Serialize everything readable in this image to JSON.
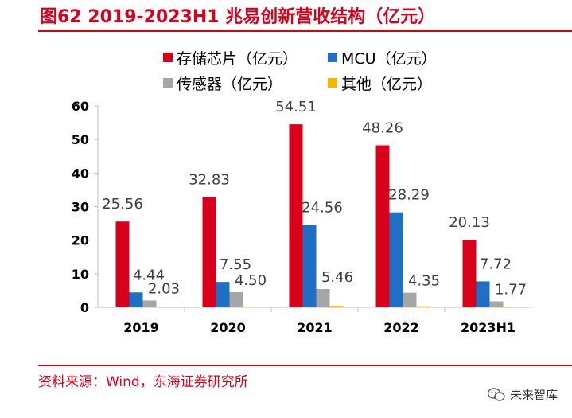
{
  "title": "图62  2019-2023H1 兆易创新营收结构（亿元）",
  "source": "资料来源：Wind，东海证券研究所",
  "watermark": "未来智库",
  "chart_data": {
    "type": "bar",
    "categories": [
      "2019",
      "2020",
      "2021",
      "2022",
      "2023H1"
    ],
    "series": [
      {
        "name": "存储芯片（亿元）",
        "color": "#d9001b",
        "values": [
          25.56,
          32.83,
          54.51,
          48.26,
          20.13
        ],
        "labels": [
          "25.56",
          "32.83",
          "54.51",
          "48.26",
          "20.13"
        ]
      },
      {
        "name": "MCU（亿元）",
        "color": "#1f6fc5",
        "values": [
          4.44,
          7.55,
          24.56,
          28.29,
          7.72
        ],
        "labels": [
          "4.44",
          "7.55",
          "24.56",
          "28.29",
          "7.72"
        ]
      },
      {
        "name": "传感器（亿元）",
        "color": "#a6a6a6",
        "values": [
          2.03,
          4.5,
          5.46,
          4.35,
          1.77
        ],
        "labels": [
          "2.03",
          "4.50",
          "5.46",
          "4.35",
          "1.77"
        ]
      },
      {
        "name": "其他（亿元）",
        "color": "#f5b800",
        "values": [
          0.05,
          0.1,
          0.45,
          0.3,
          0.05
        ],
        "labels": []
      }
    ],
    "ylim": [
      0,
      60
    ],
    "yticks": [
      0,
      10,
      20,
      30,
      40,
      50,
      60
    ],
    "legend_position": "top",
    "grid": false
  }
}
